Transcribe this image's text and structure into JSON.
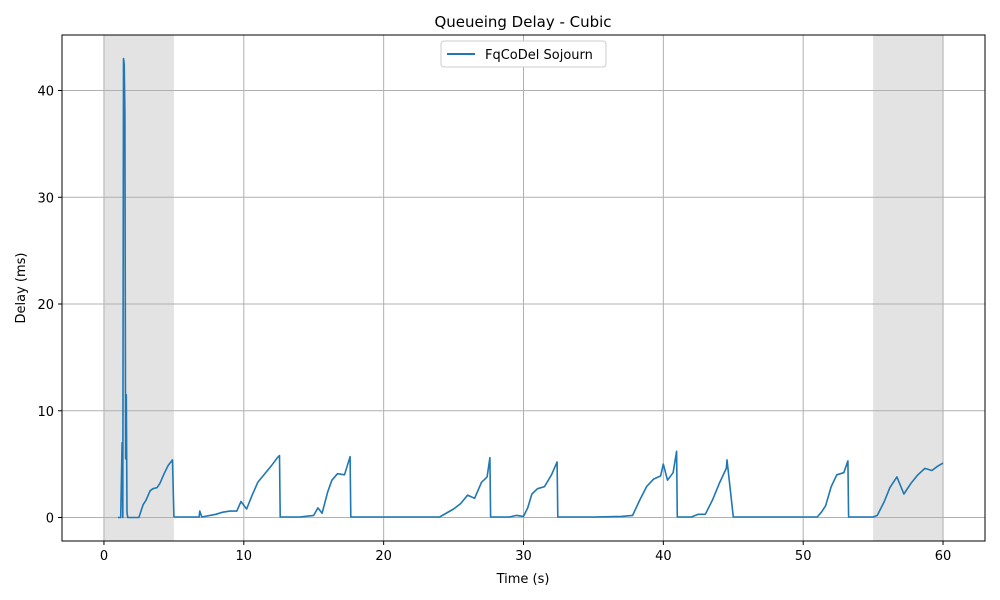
{
  "chart_data": {
    "type": "line",
    "title": "Queueing Delay - Cubic",
    "xlabel": "Time (s)",
    "ylabel": "Delay (ms)",
    "xlim": [
      -3,
      63
    ],
    "ylim": [
      -2.2,
      45.2
    ],
    "xticks": [
      0,
      10,
      20,
      30,
      40,
      50,
      60
    ],
    "yticks": [
      0,
      10,
      20,
      30,
      40
    ],
    "xtick_labels": [
      "0",
      "10",
      "20",
      "30",
      "40",
      "50",
      "60"
    ],
    "ytick_labels": [
      "0",
      "10",
      "20",
      "30",
      "40"
    ],
    "grid": true,
    "legend_position": "upper center",
    "shaded_regions": [
      [
        0,
        5
      ],
      [
        55,
        60
      ]
    ],
    "series": [
      {
        "name": "FqCoDel Sojourn",
        "color": "#1f77b4",
        "x": [
          1.0,
          1.2,
          1.3,
          1.35,
          1.4,
          1.45,
          1.5,
          1.55,
          1.6,
          1.65,
          1.7,
          1.75,
          1.8,
          1.9,
          2.0,
          2.2,
          2.5,
          2.8,
          3.0,
          3.3,
          3.5,
          3.8,
          4.0,
          4.3,
          4.6,
          4.9,
          5.0,
          5.05,
          6.0,
          6.8,
          6.85,
          7.0,
          8.0,
          8.5,
          9.0,
          9.5,
          9.8,
          10.2,
          10.6,
          11.0,
          11.5,
          12.0,
          12.4,
          12.55,
          12.6,
          13.0,
          14.0,
          15.0,
          15.3,
          15.6,
          16.0,
          16.3,
          16.7,
          17.2,
          17.6,
          17.65,
          18.0,
          20.0,
          22.0,
          24.0,
          25.0,
          25.5,
          26.0,
          26.5,
          27.0,
          27.4,
          27.6,
          27.65,
          28.0,
          29.0,
          29.5,
          30.0,
          30.3,
          30.6,
          31.0,
          31.5,
          32.0,
          32.4,
          32.45,
          33.0,
          35.0,
          37.0,
          37.8,
          38.3,
          38.8,
          39.3,
          39.8,
          40.0,
          40.3,
          40.7,
          40.95,
          41.0,
          42.0,
          42.5,
          43.0,
          43.5,
          44.0,
          44.5,
          44.55,
          45.0,
          47.0,
          49.0,
          50.0,
          51.0,
          51.3,
          51.6,
          52.0,
          52.4,
          52.9,
          53.2,
          53.25,
          54.0,
          55.0,
          55.3,
          55.8,
          56.2,
          56.7,
          57.2,
          57.7,
          58.2,
          58.7,
          59.2,
          59.6,
          60.0
        ],
        "y": [
          0.0,
          0.0,
          7.0,
          0.0,
          43.0,
          42.5,
          38.0,
          5.5,
          11.5,
          0.5,
          0.0,
          0.0,
          0.0,
          0.0,
          0.0,
          0.0,
          0.0,
          1.2,
          1.6,
          2.5,
          2.7,
          2.8,
          3.2,
          4.1,
          4.9,
          5.4,
          0.1,
          0.05,
          0.05,
          0.05,
          0.6,
          0.05,
          0.3,
          0.5,
          0.6,
          0.6,
          1.5,
          0.8,
          2.1,
          3.3,
          4.1,
          4.9,
          5.6,
          5.8,
          0.05,
          0.05,
          0.05,
          0.2,
          0.9,
          0.4,
          2.4,
          3.5,
          4.1,
          4.0,
          5.7,
          0.05,
          0.05,
          0.05,
          0.05,
          0.05,
          0.8,
          1.3,
          2.1,
          1.8,
          3.3,
          3.8,
          5.6,
          0.05,
          0.05,
          0.05,
          0.2,
          0.1,
          0.9,
          2.2,
          2.7,
          2.9,
          4.0,
          5.2,
          0.05,
          0.05,
          0.05,
          0.1,
          0.2,
          1.6,
          2.9,
          3.6,
          3.9,
          5.0,
          3.5,
          4.2,
          6.2,
          0.05,
          0.05,
          0.3,
          0.3,
          1.6,
          3.2,
          4.6,
          5.4,
          0.05,
          0.05,
          0.05,
          0.05,
          0.05,
          0.5,
          1.1,
          2.9,
          4.0,
          4.2,
          5.3,
          0.05,
          0.05,
          0.05,
          0.2,
          1.5,
          2.8,
          3.8,
          2.2,
          3.2,
          4.0,
          4.6,
          4.4,
          4.8,
          5.1
        ]
      }
    ]
  },
  "colors": {
    "line": "#1f77b4",
    "shade": "#e3e3e3",
    "grid": "#b0b0b0"
  }
}
